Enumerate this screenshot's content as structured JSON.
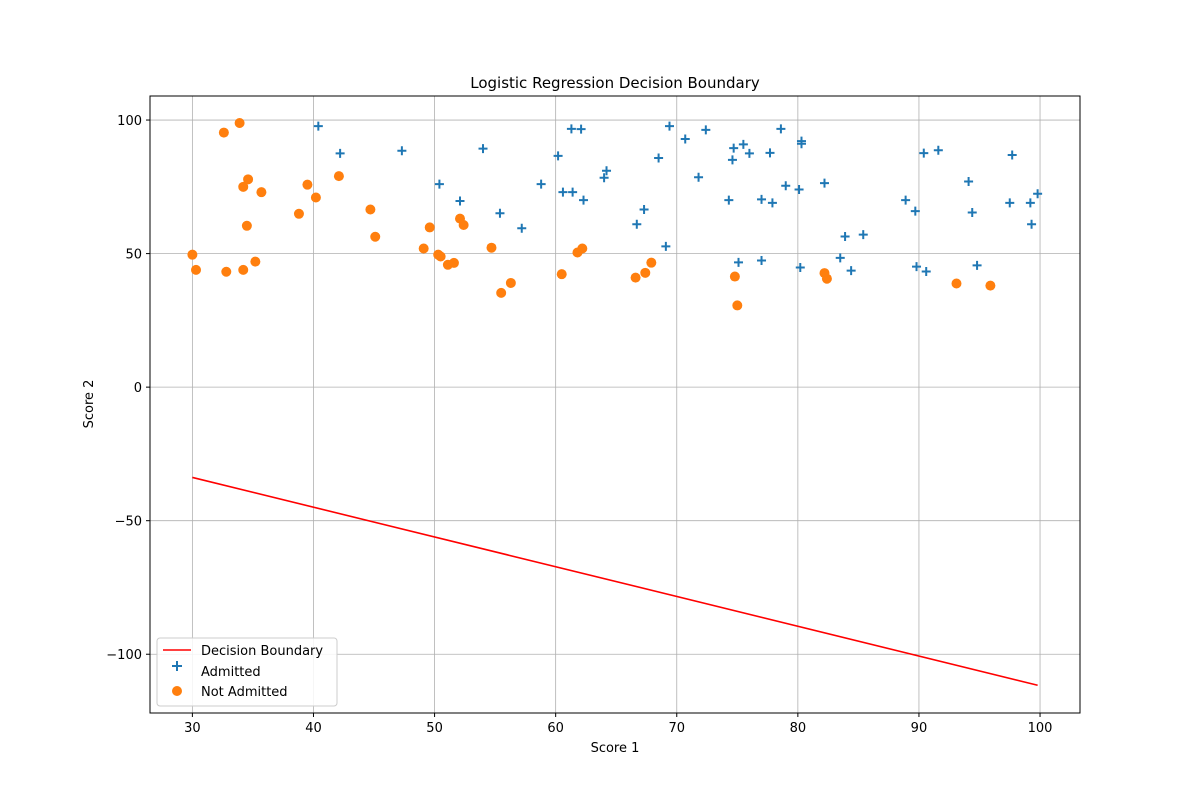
{
  "chart_data": {
    "type": "scatter",
    "title": "Logistic Regression Decision Boundary",
    "xlabel": "Score 1",
    "ylabel": "Score 2",
    "xlim": [
      26.5,
      103.3
    ],
    "ylim": [
      -122,
      109
    ],
    "xticks": [
      30,
      40,
      50,
      60,
      70,
      80,
      90,
      100
    ],
    "yticks": [
      -100,
      -50,
      0,
      50,
      100
    ],
    "ytick_labels": [
      "−100",
      "−50",
      "0",
      "50",
      "100"
    ],
    "grid": true,
    "legend_position": "lower-left",
    "series": [
      {
        "name": "Decision Boundary",
        "type": "line",
        "color": "#ff0000",
        "x": [
          30.0,
          99.8
        ],
        "y": [
          -33.8,
          -111.6
        ]
      },
      {
        "name": "Admitted",
        "type": "scatter",
        "marker": "plus",
        "color": "#1f77b4",
        "x": [
          40.4,
          42.2,
          47.3,
          54.0,
          60.2,
          61.3,
          62.1,
          69.4,
          70.7,
          72.4,
          78.6,
          80.3,
          80.3,
          77.7,
          75.5,
          76.0,
          74.7,
          74.6,
          68.5,
          64.2,
          64.0,
          58.8,
          60.6,
          61.4,
          62.3,
          50.4,
          52.1,
          55.4,
          57.2,
          67.3,
          66.7,
          69.1,
          71.8,
          74.3,
          77.0,
          77.9,
          79.0,
          80.1,
          82.2,
          83.5,
          83.9,
          84.4,
          85.4,
          88.9,
          89.7,
          90.4,
          91.6,
          94.1,
          94.4,
          97.5,
          97.7,
          99.2,
          99.3,
          99.8,
          75.1,
          77.0,
          80.2,
          89.8,
          90.6,
          94.8
        ],
        "y": [
          97.7,
          87.5,
          88.5,
          89.3,
          86.6,
          96.7,
          96.6,
          97.7,
          92.9,
          96.3,
          96.7,
          92.1,
          91.1,
          87.7,
          90.9,
          87.5,
          89.5,
          85.1,
          85.8,
          81.0,
          78.4,
          76.0,
          73.0,
          73.0,
          70.0,
          76.0,
          69.7,
          65.1,
          59.5,
          66.5,
          61.0,
          52.7,
          78.6,
          70.0,
          70.3,
          69.0,
          75.4,
          74.0,
          76.4,
          48.4,
          56.4,
          43.6,
          57.1,
          70.0,
          65.9,
          87.6,
          88.7,
          77.0,
          65.4,
          69.0,
          86.9,
          69.0,
          61.0,
          72.4,
          46.7,
          47.4,
          44.8,
          45.1,
          43.3,
          45.6
        ]
      },
      {
        "name": "Not Admitted",
        "type": "scatter",
        "marker": "circle",
        "color": "#ff7f0e",
        "x": [
          30.0,
          30.3,
          32.6,
          32.8,
          33.9,
          34.2,
          34.2,
          34.5,
          34.6,
          35.2,
          35.7,
          38.8,
          39.5,
          40.2,
          42.1,
          44.7,
          45.1,
          49.1,
          49.6,
          50.3,
          50.5,
          51.1,
          51.6,
          52.1,
          52.4,
          54.7,
          55.5,
          56.3,
          60.5,
          61.8,
          62.2,
          66.6,
          67.4,
          67.9,
          74.8,
          75.0,
          82.2,
          82.4,
          93.1,
          95.9
        ],
        "y": [
          49.6,
          43.9,
          95.3,
          43.2,
          98.9,
          75.0,
          43.9,
          60.4,
          77.8,
          47.0,
          73.0,
          64.9,
          75.8,
          71.0,
          79.0,
          66.5,
          56.3,
          51.9,
          59.8,
          49.6,
          48.9,
          45.8,
          46.5,
          63.1,
          60.7,
          52.2,
          35.3,
          39.0,
          42.3,
          50.4,
          51.9,
          41.0,
          42.8,
          46.6,
          41.4,
          30.6,
          42.7,
          40.6,
          38.8,
          38.0
        ]
      }
    ]
  }
}
